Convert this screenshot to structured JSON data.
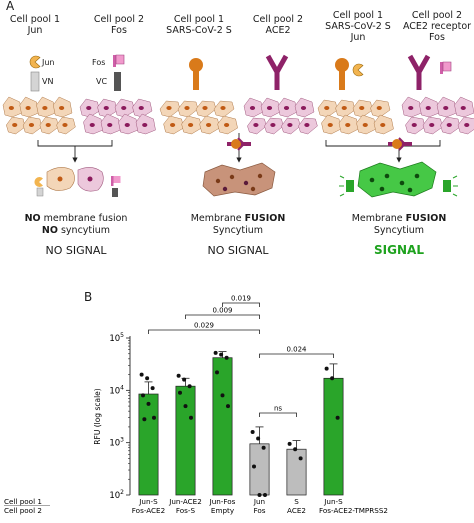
{
  "panelA": {
    "letter": "A",
    "col1": {
      "pool1": [
        "Cell pool 1",
        "Jun"
      ],
      "pool2": [
        "Cell pool 2",
        "Fos"
      ],
      "label_jun": "Jun",
      "label_vn": "VN",
      "label_fos": "Fos",
      "label_vc": "VC",
      "caption_bold_1": "NO",
      "caption_rest_1": " membrane fusion",
      "caption_bold_2": "NO",
      "caption_rest_2": " syncytium",
      "signal": "NO SIGNAL"
    },
    "col2": {
      "pool1": [
        "Cell pool 1",
        "SARS-CoV-2 S"
      ],
      "pool2": [
        "Cell pool 2",
        "ACE2"
      ],
      "caption_rest_1": "Membrane ",
      "caption_bold_1": "FUSION",
      "caption_2": "Syncytium",
      "signal": "NO SIGNAL"
    },
    "col3": {
      "pool1": [
        "Cell pool 1",
        "SARS-CoV-2 S",
        "Jun"
      ],
      "pool2": [
        "Cell pool 2",
        "ACE2 receptor",
        "Fos"
      ],
      "caption_rest_1": "Membrane ",
      "caption_bold_1": "FUSION",
      "caption_2": "Syncytium",
      "signal": "SIGNAL"
    }
  },
  "panelB": {
    "letter": "B"
  },
  "colors": {
    "green": "#2aa52a",
    "gray": "#bdbdbd",
    "orange_cell": "#f3d6b8",
    "pink_cell": "#ecc8dc",
    "orange_nucleus": "#c05a14",
    "purple_nucleus": "#8b1a5c",
    "fused_cell": "#c8937a",
    "green_syncytium": "#46c846",
    "signal_green": "#1ea21e"
  },
  "chart_data": {
    "type": "bar",
    "ylabel": "RFU  (log scale)",
    "yscale": "log",
    "ylim": [
      100,
      100000
    ],
    "yticks": [
      "10^2",
      "10^3",
      "10^4",
      "10^5"
    ],
    "row_labels": [
      "Cell pool 1",
      "Cell pool 2"
    ],
    "categories": [
      {
        "pool1": "Jun-S",
        "pool2": "Fos-ACE2",
        "value": 8500,
        "err": 14500,
        "color": "green",
        "points": [
          20000,
          17000,
          11000,
          8000,
          5500,
          3000,
          2800
        ]
      },
      {
        "pool1": "Jun-ACE2",
        "pool2": "Fos-S",
        "value": 12000,
        "err": 17000,
        "color": "green",
        "points": [
          19000,
          16000,
          12000,
          9000,
          5000,
          3000
        ]
      },
      {
        "pool1": "Jun-Fos",
        "pool2": "Empty",
        "value": 42000,
        "err": 55000,
        "color": "green",
        "points": [
          52000,
          48000,
          42000,
          22000,
          8000,
          5000
        ]
      },
      {
        "pool1": "Jun",
        "pool2": "Fos",
        "value": 950,
        "err": 2000,
        "color": "gray",
        "points": [
          1600,
          1200,
          800,
          350,
          100,
          100
        ]
      },
      {
        "pool1": "S",
        "pool2": "ACE2",
        "value": 750,
        "err": 1100,
        "color": "gray",
        "points": [
          950,
          750,
          500
        ]
      },
      {
        "pool1": "Jun-S",
        "pool2": "Fos-ACE2-TMPRSS2",
        "value": 17000,
        "err": 32000,
        "color": "green",
        "points": [
          26000,
          17000,
          3000
        ]
      }
    ],
    "significance": [
      {
        "from": 3,
        "to": 2,
        "label": "0.019"
      },
      {
        "from": 3,
        "to": 1,
        "label": "0.009"
      },
      {
        "from": 3,
        "to": 0,
        "label": "0.029"
      },
      {
        "from": 3,
        "to": 5,
        "label": "0.024"
      },
      {
        "from": 3,
        "to": 4,
        "label": "ns"
      }
    ]
  }
}
